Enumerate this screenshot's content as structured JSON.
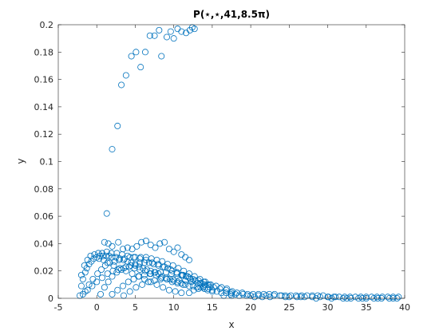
{
  "chart_data": {
    "type": "scatter",
    "title": "P(⋆,⋆,41,8.5π)",
    "xlabel": "x",
    "ylabel": "y",
    "xlim": [
      -5,
      40
    ],
    "ylim": [
      0,
      0.2
    ],
    "xticks": [
      -5,
      0,
      5,
      10,
      15,
      20,
      25,
      30,
      35,
      40
    ],
    "yticks": [
      0,
      0.02,
      0.04,
      0.06,
      0.08,
      0.1,
      0.12,
      0.14,
      0.16,
      0.18,
      0.2
    ],
    "xtick_labels": [
      "-5",
      "0",
      "5",
      "10",
      "15",
      "20",
      "25",
      "30",
      "35",
      "40"
    ],
    "ytick_labels": [
      "0",
      "0.02",
      "0.04",
      "0.06",
      "0.08",
      "0.1",
      "0.12",
      "0.14",
      "0.16",
      "0.18",
      "0.2"
    ],
    "grid": false,
    "box": true,
    "marker": "open-circle",
    "color": "#0072bd",
    "series": [
      {
        "points": [
          [
            1.3,
            0.062
          ],
          [
            2.0,
            0.109
          ],
          [
            2.7,
            0.126
          ],
          [
            3.2,
            0.156
          ],
          [
            3.8,
            0.163
          ],
          [
            4.5,
            0.177
          ],
          [
            5.1,
            0.18
          ],
          [
            5.7,
            0.169
          ],
          [
            6.3,
            0.18
          ],
          [
            6.9,
            0.192
          ],
          [
            7.5,
            0.192
          ],
          [
            8.1,
            0.196
          ],
          [
            8.4,
            0.177
          ],
          [
            9.1,
            0.191
          ],
          [
            9.6,
            0.195
          ],
          [
            10.0,
            0.19
          ],
          [
            10.5,
            0.197
          ],
          [
            11.0,
            0.195
          ],
          [
            11.6,
            0.194
          ],
          [
            12.1,
            0.196
          ],
          [
            12.4,
            0.198
          ],
          [
            12.7,
            0.197
          ],
          [
            -2.2,
            0.002
          ],
          [
            -2.0,
            0.009
          ],
          [
            -1.8,
            0.014
          ],
          [
            -1.5,
            0.019
          ],
          [
            -1.3,
            0.022
          ],
          [
            -1.0,
            0.025
          ],
          [
            -0.7,
            0.027
          ],
          [
            -0.4,
            0.029
          ],
          [
            0.0,
            0.03
          ],
          [
            0.4,
            0.031
          ],
          [
            0.8,
            0.031
          ],
          [
            1.2,
            0.031
          ],
          [
            1.6,
            0.031
          ],
          [
            2.0,
            0.03
          ],
          [
            2.5,
            0.03
          ],
          [
            3.0,
            0.029
          ],
          [
            3.5,
            0.028
          ],
          [
            4.0,
            0.027
          ],
          [
            4.5,
            0.026
          ],
          [
            5.0,
            0.024
          ],
          [
            5.5,
            0.023
          ],
          [
            6.0,
            0.022
          ],
          [
            6.5,
            0.021
          ],
          [
            7.0,
            0.02
          ],
          [
            7.5,
            0.019
          ],
          [
            8.0,
            0.018
          ],
          [
            8.5,
            0.016
          ],
          [
            9.0,
            0.015
          ],
          [
            9.5,
            0.014
          ],
          [
            10.0,
            0.013
          ],
          [
            10.5,
            0.012
          ],
          [
            11.0,
            0.011
          ],
          [
            11.5,
            0.01
          ],
          [
            12.0,
            0.009
          ],
          [
            12.5,
            0.009
          ],
          [
            13.0,
            0.008
          ],
          [
            13.5,
            0.008
          ],
          [
            14.0,
            0.007
          ],
          [
            14.5,
            0.007
          ],
          [
            15.0,
            0.006
          ],
          [
            -2.0,
            0.017
          ],
          [
            -1.6,
            0.024
          ],
          [
            -1.2,
            0.028
          ],
          [
            -0.8,
            0.031
          ],
          [
            -0.3,
            0.032
          ],
          [
            0.2,
            0.033
          ],
          [
            0.7,
            0.033
          ],
          [
            1.3,
            0.034
          ],
          [
            1.9,
            0.033
          ],
          [
            2.6,
            0.033
          ],
          [
            3.3,
            0.032
          ],
          [
            4.0,
            0.031
          ],
          [
            4.8,
            0.03
          ],
          [
            5.6,
            0.029
          ],
          [
            6.4,
            0.028
          ],
          [
            7.2,
            0.026
          ],
          [
            8.0,
            0.025
          ],
          [
            8.8,
            0.023
          ],
          [
            9.6,
            0.021
          ],
          [
            10.4,
            0.019
          ],
          [
            11.2,
            0.017
          ],
          [
            12.0,
            0.015
          ],
          [
            12.8,
            0.013
          ],
          [
            13.6,
            0.011
          ],
          [
            14.4,
            0.01
          ],
          [
            15.2,
            0.008
          ],
          [
            16.0,
            0.007
          ],
          [
            16.8,
            0.006
          ],
          [
            17.6,
            0.005
          ],
          [
            -1.5,
            0.005
          ],
          [
            -1.0,
            0.01
          ],
          [
            -0.5,
            0.014
          ],
          [
            0.1,
            0.018
          ],
          [
            0.6,
            0.021
          ],
          [
            1.1,
            0.024
          ],
          [
            1.7,
            0.026
          ],
          [
            2.3,
            0.027
          ],
          [
            2.9,
            0.028
          ],
          [
            3.6,
            0.029
          ],
          [
            4.3,
            0.03
          ],
          [
            5.0,
            0.03
          ],
          [
            5.7,
            0.03
          ],
          [
            6.4,
            0.03
          ],
          [
            7.1,
            0.029
          ],
          [
            7.8,
            0.028
          ],
          [
            8.5,
            0.027
          ],
          [
            9.2,
            0.025
          ],
          [
            9.9,
            0.024
          ],
          [
            10.6,
            0.022
          ],
          [
            11.3,
            0.02
          ],
          [
            12.0,
            0.018
          ],
          [
            12.7,
            0.016
          ],
          [
            13.4,
            0.014
          ],
          [
            14.1,
            0.012
          ],
          [
            14.8,
            0.01
          ],
          [
            15.5,
            0.009
          ],
          [
            16.2,
            0.008
          ],
          [
            16.9,
            0.007
          ],
          [
            0.5,
            0.003
          ],
          [
            1.0,
            0.008
          ],
          [
            1.5,
            0.012
          ],
          [
            2.0,
            0.016
          ],
          [
            2.6,
            0.019
          ],
          [
            3.2,
            0.021
          ],
          [
            3.8,
            0.023
          ],
          [
            4.4,
            0.024
          ],
          [
            5.0,
            0.025
          ],
          [
            5.6,
            0.026
          ],
          [
            6.2,
            0.026
          ],
          [
            6.8,
            0.026
          ],
          [
            7.4,
            0.025
          ],
          [
            8.0,
            0.024
          ],
          [
            8.6,
            0.023
          ],
          [
            9.2,
            0.022
          ],
          [
            9.8,
            0.02
          ],
          [
            10.4,
            0.019
          ],
          [
            11.0,
            0.017
          ],
          [
            11.6,
            0.016
          ],
          [
            12.2,
            0.014
          ],
          [
            12.8,
            0.013
          ],
          [
            13.4,
            0.011
          ],
          [
            14.0,
            0.01
          ],
          [
            2.0,
            0.003
          ],
          [
            2.7,
            0.006
          ],
          [
            3.4,
            0.009
          ],
          [
            4.1,
            0.012
          ],
          [
            4.8,
            0.014
          ],
          [
            5.5,
            0.016
          ],
          [
            6.2,
            0.017
          ],
          [
            6.9,
            0.018
          ],
          [
            7.6,
            0.019
          ],
          [
            8.3,
            0.019
          ],
          [
            9.0,
            0.019
          ],
          [
            9.7,
            0.018
          ],
          [
            10.4,
            0.018
          ],
          [
            11.1,
            0.017
          ],
          [
            11.8,
            0.016
          ],
          [
            12.5,
            0.014
          ],
          [
            13.2,
            0.013
          ],
          [
            13.9,
            0.012
          ],
          [
            14.6,
            0.01
          ],
          [
            3.5,
            0.002
          ],
          [
            4.3,
            0.005
          ],
          [
            5.1,
            0.008
          ],
          [
            5.9,
            0.01
          ],
          [
            6.7,
            0.012
          ],
          [
            7.5,
            0.013
          ],
          [
            8.3,
            0.014
          ],
          [
            9.1,
            0.014
          ],
          [
            9.9,
            0.014
          ],
          [
            10.7,
            0.013
          ],
          [
            11.5,
            0.013
          ],
          [
            12.3,
            0.012
          ],
          [
            13.1,
            0.011
          ],
          [
            13.9,
            0.009
          ],
          [
            14.7,
            0.008
          ],
          [
            1.0,
            0.041
          ],
          [
            1.5,
            0.04
          ],
          [
            2.0,
            0.038
          ],
          [
            2.8,
            0.041
          ],
          [
            3.4,
            0.036
          ],
          [
            4.0,
            0.037
          ],
          [
            4.6,
            0.036
          ],
          [
            5.2,
            0.038
          ],
          [
            5.8,
            0.041
          ],
          [
            6.4,
            0.042
          ],
          [
            7.0,
            0.039
          ],
          [
            7.6,
            0.037
          ],
          [
            8.2,
            0.04
          ],
          [
            8.8,
            0.041
          ],
          [
            9.4,
            0.036
          ],
          [
            10.0,
            0.034
          ],
          [
            10.5,
            0.037
          ],
          [
            11.0,
            0.032
          ],
          [
            11.5,
            0.03
          ],
          [
            12.0,
            0.028
          ],
          [
            0.3,
            0.029
          ],
          [
            0.9,
            0.028
          ],
          [
            1.4,
            0.026
          ],
          [
            2.2,
            0.024
          ],
          [
            3.0,
            0.022
          ],
          [
            3.8,
            0.02
          ],
          [
            4.6,
            0.018
          ],
          [
            5.4,
            0.016
          ],
          [
            6.2,
            0.014
          ],
          [
            7.0,
            0.012
          ],
          [
            7.8,
            0.01
          ],
          [
            8.6,
            0.008
          ],
          [
            9.4,
            0.006
          ],
          [
            10.2,
            0.005
          ],
          [
            11.0,
            0.004
          ],
          [
            -1.8,
            0.003
          ],
          [
            -1.2,
            0.006
          ],
          [
            -0.6,
            0.009
          ],
          [
            0.0,
            0.012
          ],
          [
            0.7,
            0.015
          ],
          [
            1.4,
            0.018
          ],
          [
            2.1,
            0.02
          ],
          [
            2.8,
            0.021
          ],
          [
            3.5,
            0.022
          ],
          [
            4.2,
            0.023
          ],
          [
            4.9,
            0.022
          ],
          [
            5.6,
            0.021
          ],
          [
            6.3,
            0.02
          ],
          [
            7.0,
            0.018
          ],
          [
            7.7,
            0.017
          ],
          [
            8.4,
            0.015
          ],
          [
            9.1,
            0.014
          ],
          [
            9.8,
            0.012
          ],
          [
            10.5,
            0.011
          ],
          [
            11.2,
            0.01
          ],
          [
            12.0,
            0.004
          ],
          [
            12.6,
            0.006
          ],
          [
            13.2,
            0.007
          ],
          [
            13.8,
            0.008
          ],
          [
            14.4,
            0.006
          ],
          [
            15.0,
            0.005
          ],
          [
            15.6,
            0.005
          ],
          [
            16.2,
            0.004
          ],
          [
            16.8,
            0.004
          ],
          [
            17.4,
            0.003
          ],
          [
            17.5,
            0.004
          ],
          [
            18.2,
            0.004
          ],
          [
            18.9,
            0.004
          ],
          [
            19.6,
            0.003
          ],
          [
            20.3,
            0.003
          ],
          [
            21.0,
            0.003
          ],
          [
            21.7,
            0.003
          ],
          [
            22.4,
            0.003
          ],
          [
            23.1,
            0.003
          ],
          [
            23.8,
            0.002
          ],
          [
            24.5,
            0.002
          ],
          [
            25.2,
            0.002
          ],
          [
            25.9,
            0.002
          ],
          [
            26.6,
            0.002
          ],
          [
            27.3,
            0.002
          ],
          [
            28.0,
            0.002
          ],
          [
            28.7,
            0.002
          ],
          [
            29.4,
            0.002
          ],
          [
            30.1,
            0.001
          ],
          [
            30.8,
            0.001
          ],
          [
            31.5,
            0.001
          ],
          [
            32.2,
            0.001
          ],
          [
            32.9,
            0.001
          ],
          [
            33.6,
            0.001
          ],
          [
            34.3,
            0.001
          ],
          [
            35.0,
            0.001
          ],
          [
            35.7,
            0.001
          ],
          [
            36.4,
            0.001
          ],
          [
            37.1,
            0.001
          ],
          [
            37.8,
            0.001
          ],
          [
            38.5,
            0.001
          ],
          [
            39.2,
            0.001
          ],
          [
            18.0,
            0.003
          ],
          [
            19.0,
            0.003
          ],
          [
            20.0,
            0.002
          ],
          [
            21.0,
            0.002
          ],
          [
            22.0,
            0.002
          ],
          [
            23.0,
            0.002
          ],
          [
            24.0,
            0.002
          ],
          [
            25.0,
            0.001
          ],
          [
            26.0,
            0.001
          ],
          [
            27.0,
            0.001
          ],
          [
            28.0,
            0.001
          ],
          [
            29.0,
            0.001
          ],
          [
            30.0,
            0.001
          ],
          [
            31.0,
            0.001
          ],
          [
            32.0,
            0.0
          ],
          [
            33.0,
            0.0
          ],
          [
            34.0,
            0.0
          ],
          [
            35.0,
            0.0
          ],
          [
            36.0,
            0.0
          ],
          [
            37.0,
            0.0
          ],
          [
            38.0,
            0.0
          ],
          [
            39.0,
            0.0
          ],
          [
            16.5,
            0.002
          ],
          [
            17.5,
            0.002
          ],
          [
            18.5,
            0.002
          ],
          [
            19.5,
            0.002
          ],
          [
            20.5,
            0.001
          ],
          [
            21.5,
            0.001
          ],
          [
            22.5,
            0.001
          ],
          [
            24.5,
            0.001
          ],
          [
            26.5,
            0.001
          ],
          [
            28.5,
            0.0
          ],
          [
            30.5,
            0.0
          ],
          [
            32.5,
            0.0
          ],
          [
            34.5,
            0.0
          ],
          [
            36.5,
            0.0
          ],
          [
            38.5,
            0.0
          ]
        ]
      }
    ]
  }
}
